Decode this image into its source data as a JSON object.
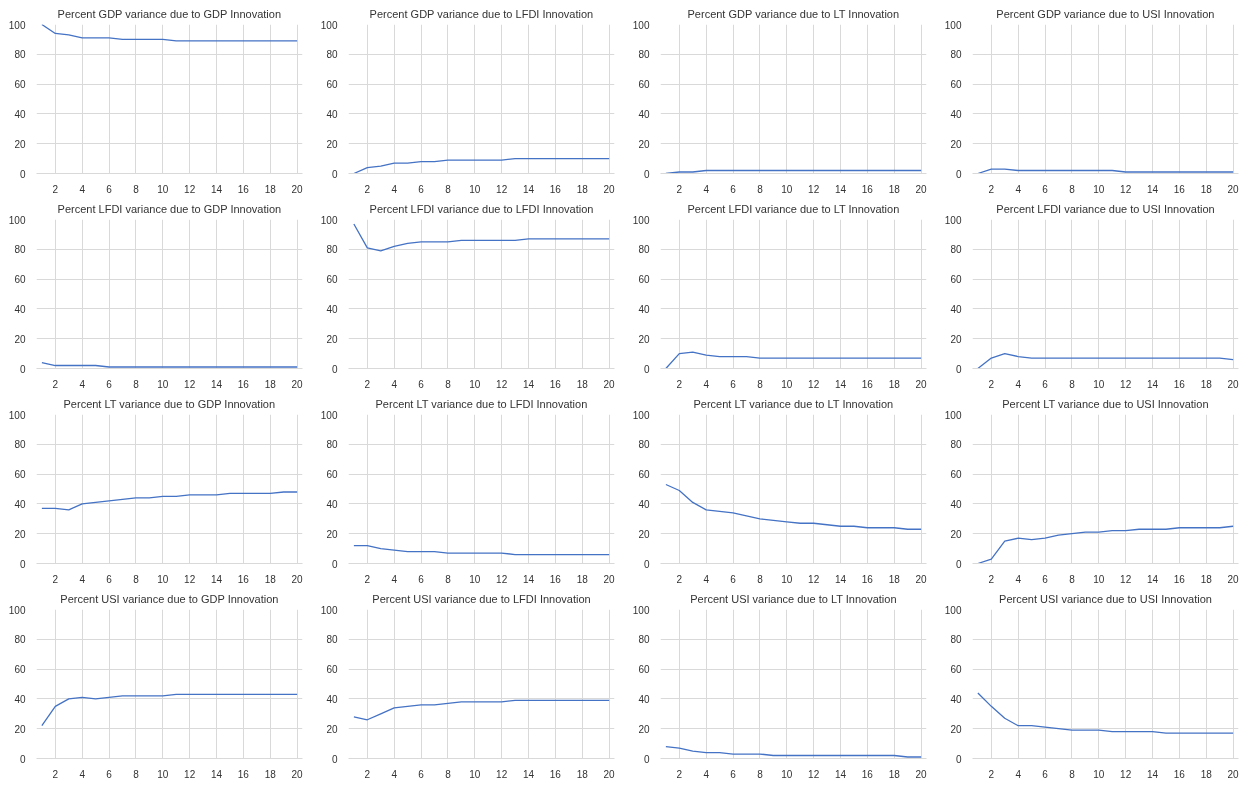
{
  "chart_data": [
    {
      "type": "line",
      "title": "Percent GDP variance due to GDP Innovation",
      "x": [
        1,
        2,
        3,
        4,
        5,
        6,
        7,
        8,
        9,
        10,
        11,
        12,
        13,
        14,
        15,
        16,
        17,
        18,
        19,
        20
      ],
      "values": [
        100,
        94,
        93,
        91,
        91,
        91,
        90,
        90,
        90,
        90,
        89,
        89,
        89,
        89,
        89,
        89,
        89,
        89,
        89,
        89
      ],
      "color": "#4472c4",
      "xlim": [
        0.6,
        20.4
      ],
      "ylim": [
        0,
        100
      ],
      "xticks": [
        2,
        4,
        6,
        8,
        10,
        12,
        14,
        16,
        18,
        20
      ],
      "yticks": [
        0,
        20,
        40,
        60,
        80,
        100
      ],
      "grid": true
    },
    {
      "type": "line",
      "title": "Percent GDP variance due to LFDI Innovation",
      "x": [
        1,
        2,
        3,
        4,
        5,
        6,
        7,
        8,
        9,
        10,
        11,
        12,
        13,
        14,
        15,
        16,
        17,
        18,
        19,
        20
      ],
      "values": [
        0,
        4,
        5,
        7,
        7,
        8,
        8,
        9,
        9,
        9,
        9,
        9,
        10,
        10,
        10,
        10,
        10,
        10,
        10,
        10
      ],
      "color": "#4472c4",
      "xlim": [
        0.6,
        20.4
      ],
      "ylim": [
        0,
        100
      ],
      "xticks": [
        2,
        4,
        6,
        8,
        10,
        12,
        14,
        16,
        18,
        20
      ],
      "yticks": [
        0,
        20,
        40,
        60,
        80,
        100
      ],
      "grid": true
    },
    {
      "type": "line",
      "title": "Percent GDP variance due to LT Innovation",
      "x": [
        1,
        2,
        3,
        4,
        5,
        6,
        7,
        8,
        9,
        10,
        11,
        12,
        13,
        14,
        15,
        16,
        17,
        18,
        19,
        20
      ],
      "values": [
        0,
        1,
        1,
        2,
        2,
        2,
        2,
        2,
        2,
        2,
        2,
        2,
        2,
        2,
        2,
        2,
        2,
        2,
        2,
        2
      ],
      "color": "#4472c4",
      "xlim": [
        0.6,
        20.4
      ],
      "ylim": [
        0,
        100
      ],
      "xticks": [
        2,
        4,
        6,
        8,
        10,
        12,
        14,
        16,
        18,
        20
      ],
      "yticks": [
        0,
        20,
        40,
        60,
        80,
        100
      ],
      "grid": true
    },
    {
      "type": "line",
      "title": "Percent GDP variance due to USI Innovation",
      "x": [
        1,
        2,
        3,
        4,
        5,
        6,
        7,
        8,
        9,
        10,
        11,
        12,
        13,
        14,
        15,
        16,
        17,
        18,
        19,
        20
      ],
      "values": [
        0,
        3,
        3,
        2,
        2,
        2,
        2,
        2,
        2,
        2,
        2,
        1,
        1,
        1,
        1,
        1,
        1,
        1,
        1,
        1
      ],
      "color": "#4472c4",
      "xlim": [
        0.6,
        20.4
      ],
      "ylim": [
        0,
        100
      ],
      "xticks": [
        2,
        4,
        6,
        8,
        10,
        12,
        14,
        16,
        18,
        20
      ],
      "yticks": [
        0,
        20,
        40,
        60,
        80,
        100
      ],
      "grid": true
    },
    {
      "type": "line",
      "title": "Percent LFDI variance due to GDP Innovation",
      "x": [
        1,
        2,
        3,
        4,
        5,
        6,
        7,
        8,
        9,
        10,
        11,
        12,
        13,
        14,
        15,
        16,
        17,
        18,
        19,
        20
      ],
      "values": [
        4,
        2,
        2,
        2,
        2,
        1,
        1,
        1,
        1,
        1,
        1,
        1,
        1,
        1,
        1,
        1,
        1,
        1,
        1,
        1
      ],
      "color": "#4472c4",
      "xlim": [
        0.6,
        20.4
      ],
      "ylim": [
        0,
        100
      ],
      "xticks": [
        2,
        4,
        6,
        8,
        10,
        12,
        14,
        16,
        18,
        20
      ],
      "yticks": [
        0,
        20,
        40,
        60,
        80,
        100
      ],
      "grid": true
    },
    {
      "type": "line",
      "title": "Percent LFDI variance due to LFDI Innovation",
      "x": [
        1,
        2,
        3,
        4,
        5,
        6,
        7,
        8,
        9,
        10,
        11,
        12,
        13,
        14,
        15,
        16,
        17,
        18,
        19,
        20
      ],
      "values": [
        97,
        81,
        79,
        82,
        84,
        85,
        85,
        85,
        86,
        86,
        86,
        86,
        86,
        87,
        87,
        87,
        87,
        87,
        87,
        87
      ],
      "color": "#4472c4",
      "xlim": [
        0.6,
        20.4
      ],
      "ylim": [
        0,
        100
      ],
      "xticks": [
        2,
        4,
        6,
        8,
        10,
        12,
        14,
        16,
        18,
        20
      ],
      "yticks": [
        0,
        20,
        40,
        60,
        80,
        100
      ],
      "grid": true
    },
    {
      "type": "line",
      "title": "Percent LFDI variance due to LT Innovation",
      "x": [
        1,
        2,
        3,
        4,
        5,
        6,
        7,
        8,
        9,
        10,
        11,
        12,
        13,
        14,
        15,
        16,
        17,
        18,
        19,
        20
      ],
      "values": [
        0,
        10,
        11,
        9,
        8,
        8,
        8,
        7,
        7,
        7,
        7,
        7,
        7,
        7,
        7,
        7,
        7,
        7,
        7,
        7
      ],
      "color": "#4472c4",
      "xlim": [
        0.6,
        20.4
      ],
      "ylim": [
        0,
        100
      ],
      "xticks": [
        2,
        4,
        6,
        8,
        10,
        12,
        14,
        16,
        18,
        20
      ],
      "yticks": [
        0,
        20,
        40,
        60,
        80,
        100
      ],
      "grid": true
    },
    {
      "type": "line",
      "title": "Percent LFDI variance due to USI Innovation",
      "x": [
        1,
        2,
        3,
        4,
        5,
        6,
        7,
        8,
        9,
        10,
        11,
        12,
        13,
        14,
        15,
        16,
        17,
        18,
        19,
        20
      ],
      "values": [
        0,
        7,
        10,
        8,
        7,
        7,
        7,
        7,
        7,
        7,
        7,
        7,
        7,
        7,
        7,
        7,
        7,
        7,
        7,
        6
      ],
      "color": "#4472c4",
      "xlim": [
        0.6,
        20.4
      ],
      "ylim": [
        0,
        100
      ],
      "xticks": [
        2,
        4,
        6,
        8,
        10,
        12,
        14,
        16,
        18,
        20
      ],
      "yticks": [
        0,
        20,
        40,
        60,
        80,
        100
      ],
      "grid": true
    },
    {
      "type": "line",
      "title": "Percent LT variance due to GDP Innovation",
      "x": [
        1,
        2,
        3,
        4,
        5,
        6,
        7,
        8,
        9,
        10,
        11,
        12,
        13,
        14,
        15,
        16,
        17,
        18,
        19,
        20
      ],
      "values": [
        37,
        37,
        36,
        40,
        41,
        42,
        43,
        44,
        44,
        45,
        45,
        46,
        46,
        46,
        47,
        47,
        47,
        47,
        48,
        48
      ],
      "color": "#4472c4",
      "xlim": [
        0.6,
        20.4
      ],
      "ylim": [
        0,
        100
      ],
      "xticks": [
        2,
        4,
        6,
        8,
        10,
        12,
        14,
        16,
        18,
        20
      ],
      "yticks": [
        0,
        20,
        40,
        60,
        80,
        100
      ],
      "grid": true
    },
    {
      "type": "line",
      "title": "Percent LT variance due to LFDI Innovation",
      "x": [
        1,
        2,
        3,
        4,
        5,
        6,
        7,
        8,
        9,
        10,
        11,
        12,
        13,
        14,
        15,
        16,
        17,
        18,
        19,
        20
      ],
      "values": [
        12,
        12,
        10,
        9,
        8,
        8,
        8,
        7,
        7,
        7,
        7,
        7,
        6,
        6,
        6,
        6,
        6,
        6,
        6,
        6
      ],
      "color": "#4472c4",
      "xlim": [
        0.6,
        20.4
      ],
      "ylim": [
        0,
        100
      ],
      "xticks": [
        2,
        4,
        6,
        8,
        10,
        12,
        14,
        16,
        18,
        20
      ],
      "yticks": [
        0,
        20,
        40,
        60,
        80,
        100
      ],
      "grid": true
    },
    {
      "type": "line",
      "title": "Percent LT variance due to LT Innovation",
      "x": [
        1,
        2,
        3,
        4,
        5,
        6,
        7,
        8,
        9,
        10,
        11,
        12,
        13,
        14,
        15,
        16,
        17,
        18,
        19,
        20
      ],
      "values": [
        53,
        49,
        41,
        36,
        35,
        34,
        32,
        30,
        29,
        28,
        27,
        27,
        26,
        25,
        25,
        24,
        24,
        24,
        23,
        23
      ],
      "color": "#4472c4",
      "xlim": [
        0.6,
        20.4
      ],
      "ylim": [
        0,
        100
      ],
      "xticks": [
        2,
        4,
        6,
        8,
        10,
        12,
        14,
        16,
        18,
        20
      ],
      "yticks": [
        0,
        20,
        40,
        60,
        80,
        100
      ],
      "grid": true
    },
    {
      "type": "line",
      "title": "Percent LT variance due to USI Innovation",
      "x": [
        1,
        2,
        3,
        4,
        5,
        6,
        7,
        8,
        9,
        10,
        11,
        12,
        13,
        14,
        15,
        16,
        17,
        18,
        19,
        20
      ],
      "values": [
        0,
        3,
        15,
        17,
        16,
        17,
        19,
        20,
        21,
        21,
        22,
        22,
        23,
        23,
        23,
        24,
        24,
        24,
        24,
        25
      ],
      "color": "#4472c4",
      "xlim": [
        0.6,
        20.4
      ],
      "ylim": [
        0,
        100
      ],
      "xticks": [
        2,
        4,
        6,
        8,
        10,
        12,
        14,
        16,
        18,
        20
      ],
      "yticks": [
        0,
        20,
        40,
        60,
        80,
        100
      ],
      "grid": true
    },
    {
      "type": "line",
      "title": "Percent USI variance due to GDP Innovation",
      "x": [
        1,
        2,
        3,
        4,
        5,
        6,
        7,
        8,
        9,
        10,
        11,
        12,
        13,
        14,
        15,
        16,
        17,
        18,
        19,
        20
      ],
      "values": [
        22,
        35,
        40,
        41,
        40,
        41,
        42,
        42,
        42,
        42,
        43,
        43,
        43,
        43,
        43,
        43,
        43,
        43,
        43,
        43
      ],
      "color": "#4472c4",
      "xlim": [
        0.6,
        20.4
      ],
      "ylim": [
        0,
        100
      ],
      "xticks": [
        2,
        4,
        6,
        8,
        10,
        12,
        14,
        16,
        18,
        20
      ],
      "yticks": [
        0,
        20,
        40,
        60,
        80,
        100
      ],
      "grid": true
    },
    {
      "type": "line",
      "title": "Percent USI variance due to LFDI Innovation",
      "x": [
        1,
        2,
        3,
        4,
        5,
        6,
        7,
        8,
        9,
        10,
        11,
        12,
        13,
        14,
        15,
        16,
        17,
        18,
        19,
        20
      ],
      "values": [
        28,
        26,
        30,
        34,
        35,
        36,
        36,
        37,
        38,
        38,
        38,
        38,
        39,
        39,
        39,
        39,
        39,
        39,
        39,
        39
      ],
      "color": "#4472c4",
      "xlim": [
        0.6,
        20.4
      ],
      "ylim": [
        0,
        100
      ],
      "xticks": [
        2,
        4,
        6,
        8,
        10,
        12,
        14,
        16,
        18,
        20
      ],
      "yticks": [
        0,
        20,
        40,
        60,
        80,
        100
      ],
      "grid": true
    },
    {
      "type": "line",
      "title": "Percent USI variance due to LT Innovation",
      "x": [
        1,
        2,
        3,
        4,
        5,
        6,
        7,
        8,
        9,
        10,
        11,
        12,
        13,
        14,
        15,
        16,
        17,
        18,
        19,
        20
      ],
      "values": [
        8,
        7,
        5,
        4,
        4,
        3,
        3,
        3,
        2,
        2,
        2,
        2,
        2,
        2,
        2,
        2,
        2,
        2,
        1,
        1
      ],
      "color": "#4472c4",
      "xlim": [
        0.6,
        20.4
      ],
      "ylim": [
        0,
        100
      ],
      "xticks": [
        2,
        4,
        6,
        8,
        10,
        12,
        14,
        16,
        18,
        20
      ],
      "yticks": [
        0,
        20,
        40,
        60,
        80,
        100
      ],
      "grid": true
    },
    {
      "type": "line",
      "title": "Percent USI variance due to USI Innovation",
      "x": [
        1,
        2,
        3,
        4,
        5,
        6,
        7,
        8,
        9,
        10,
        11,
        12,
        13,
        14,
        15,
        16,
        17,
        18,
        19,
        20
      ],
      "values": [
        44,
        35,
        27,
        22,
        22,
        21,
        20,
        19,
        19,
        19,
        18,
        18,
        18,
        18,
        17,
        17,
        17,
        17,
        17,
        17
      ],
      "color": "#4472c4",
      "xlim": [
        0.6,
        20.4
      ],
      "ylim": [
        0,
        100
      ],
      "xticks": [
        2,
        4,
        6,
        8,
        10,
        12,
        14,
        16,
        18,
        20
      ],
      "yticks": [
        0,
        20,
        40,
        60,
        80,
        100
      ],
      "grid": true
    }
  ]
}
